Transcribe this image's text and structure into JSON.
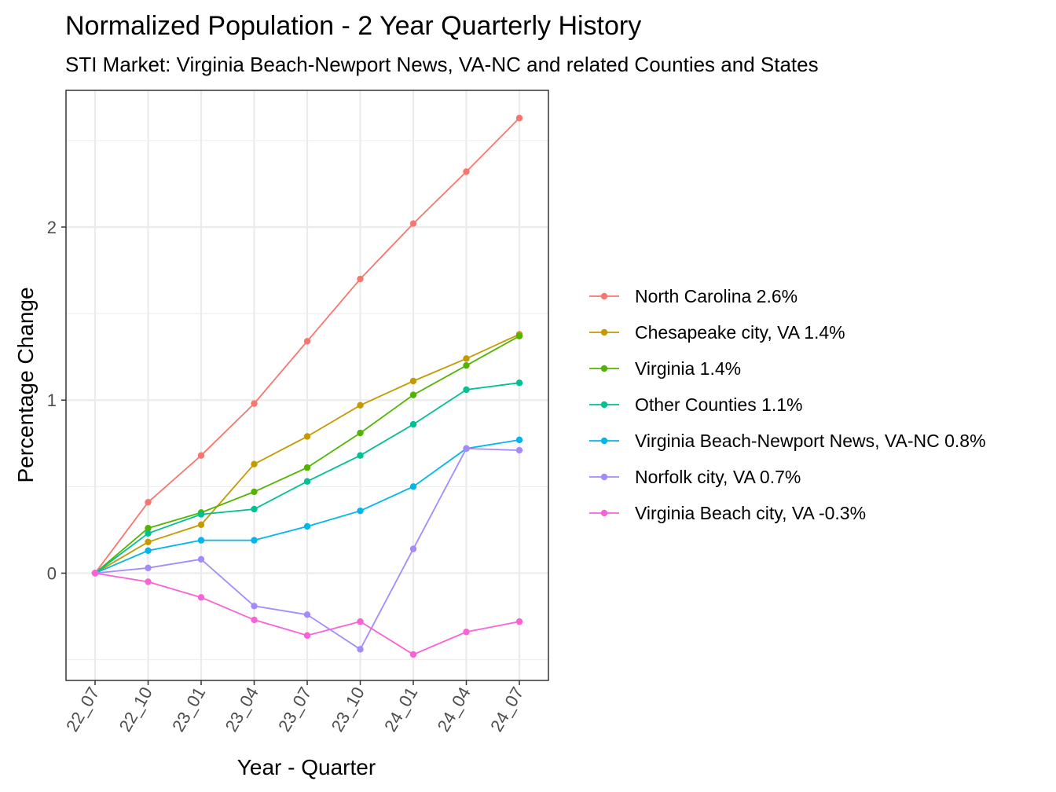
{
  "chart_data": {
    "type": "line",
    "title": "Normalized Population - 2 Year Quarterly History",
    "subtitle": "STI Market: Virginia Beach-Newport News, VA-NC and related Counties and States",
    "xlabel": "Year - Quarter",
    "ylabel": "Percentage Change",
    "categories": [
      "22_07",
      "22_10",
      "23_01",
      "23_04",
      "23_07",
      "23_10",
      "24_01",
      "24_04",
      "24_07"
    ],
    "ylim": [
      -0.62,
      2.79
    ],
    "yticks": [
      0,
      1,
      2
    ],
    "ytick_labels": [
      "0",
      "1",
      "2"
    ],
    "yminor": [
      -0.5,
      0.5,
      1.5,
      2.5
    ],
    "grid": true,
    "legend_position": "right",
    "series": [
      {
        "name": "North Carolina 2.6%",
        "color": "#F8766D",
        "values": [
          0,
          0.41,
          0.68,
          0.98,
          1.34,
          1.7,
          2.02,
          2.32,
          2.63
        ]
      },
      {
        "name": "Chesapeake city, VA 1.4%",
        "color": "#C49A00",
        "values": [
          0,
          0.18,
          0.28,
          0.63,
          0.79,
          0.97,
          1.11,
          1.24,
          1.38
        ]
      },
      {
        "name": "Virginia 1.4%",
        "color": "#53B400",
        "values": [
          0,
          0.26,
          0.35,
          0.47,
          0.61,
          0.81,
          1.03,
          1.2,
          1.37
        ]
      },
      {
        "name": "Other Counties 1.1%",
        "color": "#00C094",
        "values": [
          0,
          0.23,
          0.34,
          0.37,
          0.53,
          0.68,
          0.86,
          1.06,
          1.1
        ]
      },
      {
        "name": "Virginia Beach-Newport News, VA-NC 0.8%",
        "color": "#00B6EB",
        "values": [
          0,
          0.13,
          0.19,
          0.19,
          0.27,
          0.36,
          0.5,
          0.72,
          0.77
        ]
      },
      {
        "name": "Norfolk city, VA 0.7%",
        "color": "#A58AFF",
        "values": [
          0,
          0.03,
          0.08,
          -0.19,
          -0.24,
          -0.44,
          0.14,
          0.72,
          0.71
        ]
      },
      {
        "name": "Virginia Beach city, VA -0.3%",
        "color": "#FB61D7",
        "values": [
          0,
          -0.05,
          -0.14,
          -0.27,
          -0.36,
          -0.28,
          -0.47,
          -0.34,
          -0.28
        ]
      }
    ]
  }
}
